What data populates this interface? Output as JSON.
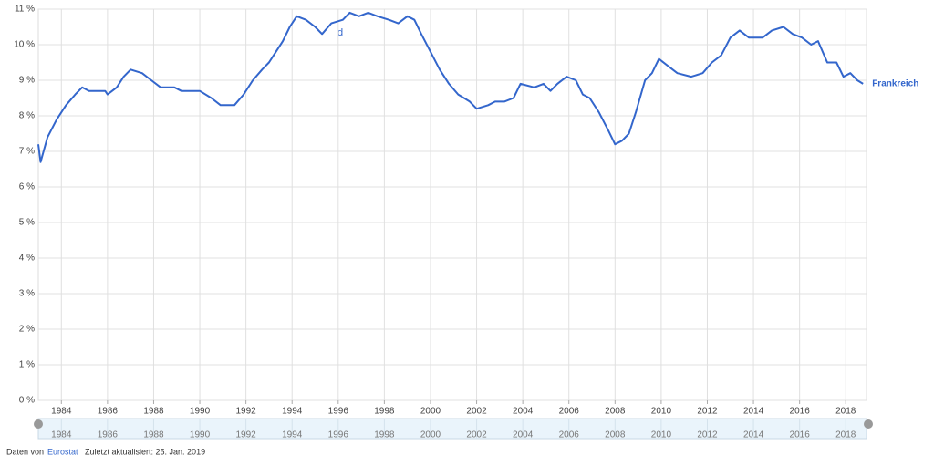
{
  "chart_data": {
    "type": "line",
    "series": [
      {
        "name": "Frankreich",
        "color": "#3366cc",
        "x": [
          1983.0,
          1983.1,
          1983.4,
          1983.8,
          1984.2,
          1984.6,
          1984.9,
          1985.2,
          1985.9,
          1986.0,
          1986.4,
          1986.7,
          1987.0,
          1987.5,
          1987.9,
          1988.3,
          1988.9,
          1989.2,
          1990.0,
          1990.5,
          1990.9,
          1991.5,
          1991.9,
          1992.3,
          1992.7,
          1993.0,
          1993.3,
          1993.6,
          1993.9,
          1994.2,
          1994.6,
          1995.0,
          1995.3,
          1995.7,
          1996.2,
          1996.5,
          1996.9,
          1997.3,
          1997.7,
          1998.2,
          1998.6,
          1999.0,
          1999.3,
          1999.6,
          2000.0,
          2000.4,
          2000.8,
          2001.2,
          2001.7,
          2002.0,
          2002.5,
          2002.8,
          2003.2,
          2003.6,
          2003.9,
          2004.5,
          2004.9,
          2005.2,
          2005.5,
          2005.9,
          2006.3,
          2006.6,
          2006.9,
          2007.3,
          2007.7,
          2008.0,
          2008.3,
          2008.6,
          2008.9,
          2009.3,
          2009.6,
          2009.9,
          2010.3,
          2010.7,
          2011.3,
          2011.8,
          2012.2,
          2012.6,
          2013.0,
          2013.4,
          2013.8,
          2014.4,
          2014.8,
          2015.3,
          2015.7,
          2016.1,
          2016.5,
          2016.8,
          2017.2,
          2017.6,
          2017.9,
          2018.2,
          2018.5,
          2018.75
        ],
        "values": [
          7.2,
          6.7,
          7.4,
          7.9,
          8.3,
          8.6,
          8.8,
          8.7,
          8.7,
          8.6,
          8.8,
          9.1,
          9.3,
          9.2,
          9.0,
          8.8,
          8.8,
          8.7,
          8.7,
          8.5,
          8.3,
          8.3,
          8.6,
          9.0,
          9.3,
          9.5,
          9.8,
          10.1,
          10.5,
          10.8,
          10.7,
          10.5,
          10.3,
          10.6,
          10.7,
          10.9,
          10.8,
          10.9,
          10.8,
          10.7,
          10.6,
          10.8,
          10.7,
          10.3,
          9.8,
          9.3,
          8.9,
          8.6,
          8.4,
          8.2,
          8.3,
          8.4,
          8.4,
          8.5,
          8.9,
          8.8,
          8.9,
          8.7,
          8.9,
          9.1,
          9.0,
          8.6,
          8.5,
          8.1,
          7.6,
          7.2,
          7.3,
          7.5,
          8.1,
          9.0,
          9.2,
          9.6,
          9.4,
          9.2,
          9.1,
          9.2,
          9.5,
          9.7,
          10.2,
          10.4,
          10.2,
          10.2,
          10.4,
          10.5,
          10.3,
          10.2,
          10.0,
          10.1,
          9.5,
          9.5,
          9.1,
          9.2,
          9.0,
          8.9
        ]
      }
    ],
    "annotation": "d",
    "xlim": [
      1983.0,
      2018.9
    ],
    "xticks": [
      1984,
      1986,
      1988,
      1990,
      1992,
      1994,
      1996,
      1998,
      2000,
      2002,
      2004,
      2006,
      2008,
      2010,
      2012,
      2014,
      2016,
      2018
    ],
    "ylim": [
      0,
      11
    ],
    "yticks": [
      {
        "value": 0,
        "label": "0 %"
      },
      {
        "value": 1,
        "label": "1 %"
      },
      {
        "value": 2,
        "label": "2 %"
      },
      {
        "value": 3,
        "label": "3 %"
      },
      {
        "value": 4,
        "label": "4 %"
      },
      {
        "value": 5,
        "label": "5 %"
      },
      {
        "value": 6,
        "label": "6 %"
      },
      {
        "value": 7,
        "label": "7 %"
      },
      {
        "value": 8,
        "label": "8 %"
      },
      {
        "value": 9,
        "label": "9 %"
      },
      {
        "value": 10,
        "label": "10 %"
      },
      {
        "value": 11,
        "label": "11 %"
      }
    ],
    "grid": true,
    "source_prefix": "Daten von",
    "source": "Eurostat",
    "updated": "Zuletzt aktualisiert: 25. Jan. 2019"
  }
}
